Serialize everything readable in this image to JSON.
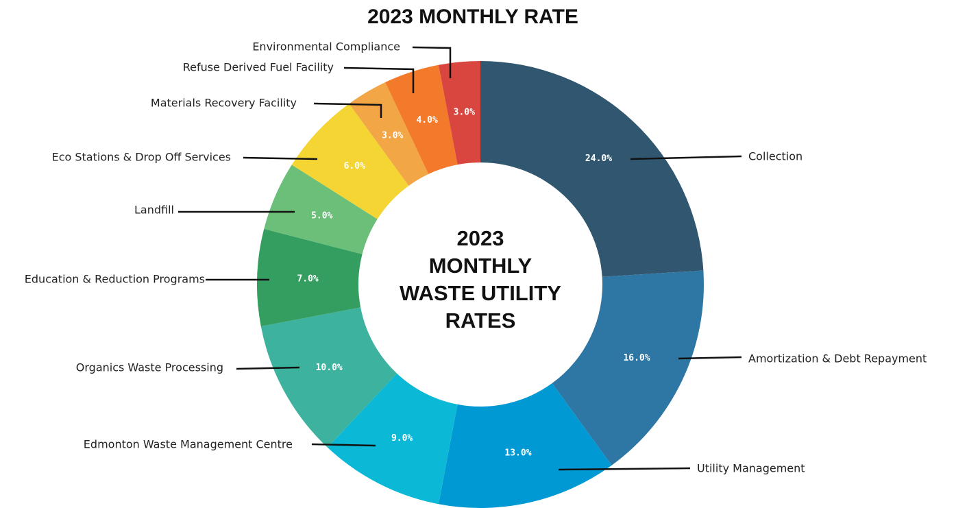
{
  "chart_data": {
    "type": "donut",
    "title": "2023 MONTHLY RATE",
    "center_text": [
      "2023",
      "MONTHLY",
      "WASTE UTILITY",
      "RATES"
    ],
    "categories": [
      "Collection",
      "Amortization & Debt Repayment",
      "Utility Management",
      "Edmonton Waste Management Centre",
      "Organics Waste Processing",
      "Education & Reduction Programs",
      "Landfill",
      "Eco Stations & Drop Off Services",
      "Materials Recovery Facility",
      "Refuse Derived Fuel Facility",
      "Environmental Compliance"
    ],
    "values": [
      24,
      16,
      13,
      9,
      10,
      7,
      5,
      6,
      3,
      4,
      3
    ],
    "value_labels": [
      "24.0%",
      "16.0%",
      "13.0%",
      "9.0%",
      "10.0%",
      "7.0%",
      "5.0%",
      "6.0%",
      "3.0%",
      "4.0%",
      "3.0%"
    ],
    "colors": [
      "#315770",
      "#2e76a3",
      "#0099d4",
      "#0bb9d6",
      "#3db39f",
      "#339e60",
      "#6bbf79",
      "#f4d533",
      "#f2a646",
      "#f37a2a",
      "#d9463f"
    ]
  }
}
